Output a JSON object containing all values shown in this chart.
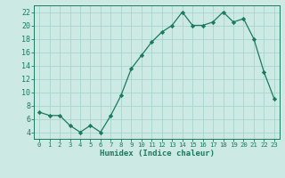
{
  "x": [
    0,
    1,
    2,
    3,
    4,
    5,
    6,
    7,
    8,
    9,
    10,
    11,
    12,
    13,
    14,
    15,
    16,
    17,
    18,
    19,
    20,
    21,
    22,
    23
  ],
  "y": [
    7,
    6.5,
    6.5,
    5,
    4,
    5,
    4,
    6.5,
    9.5,
    13.5,
    15.5,
    17.5,
    19,
    20,
    22,
    20,
    20,
    20.5,
    22,
    20.5,
    21,
    18,
    13,
    9
  ],
  "line_color": "#1a7a5e",
  "marker": "D",
  "marker_size": 2.2,
  "bg_color": "#cce9e4",
  "grid_color": "#a8d5cc",
  "xlabel": "Humidex (Indice chaleur)",
  "xlim": [
    -0.5,
    23.5
  ],
  "ylim": [
    3,
    23
  ],
  "yticks": [
    4,
    6,
    8,
    10,
    12,
    14,
    16,
    18,
    20,
    22
  ],
  "xtick_labels": [
    "0",
    "1",
    "2",
    "3",
    "4",
    "5",
    "6",
    "7",
    "8",
    "9",
    "10",
    "11",
    "12",
    "13",
    "14",
    "15",
    "16",
    "17",
    "18",
    "19",
    "20",
    "21",
    "22",
    "23"
  ],
  "font_color": "#1a7a5e",
  "xlabel_fontsize": 6.5,
  "xtick_fontsize": 5.2,
  "ytick_fontsize": 6.0
}
